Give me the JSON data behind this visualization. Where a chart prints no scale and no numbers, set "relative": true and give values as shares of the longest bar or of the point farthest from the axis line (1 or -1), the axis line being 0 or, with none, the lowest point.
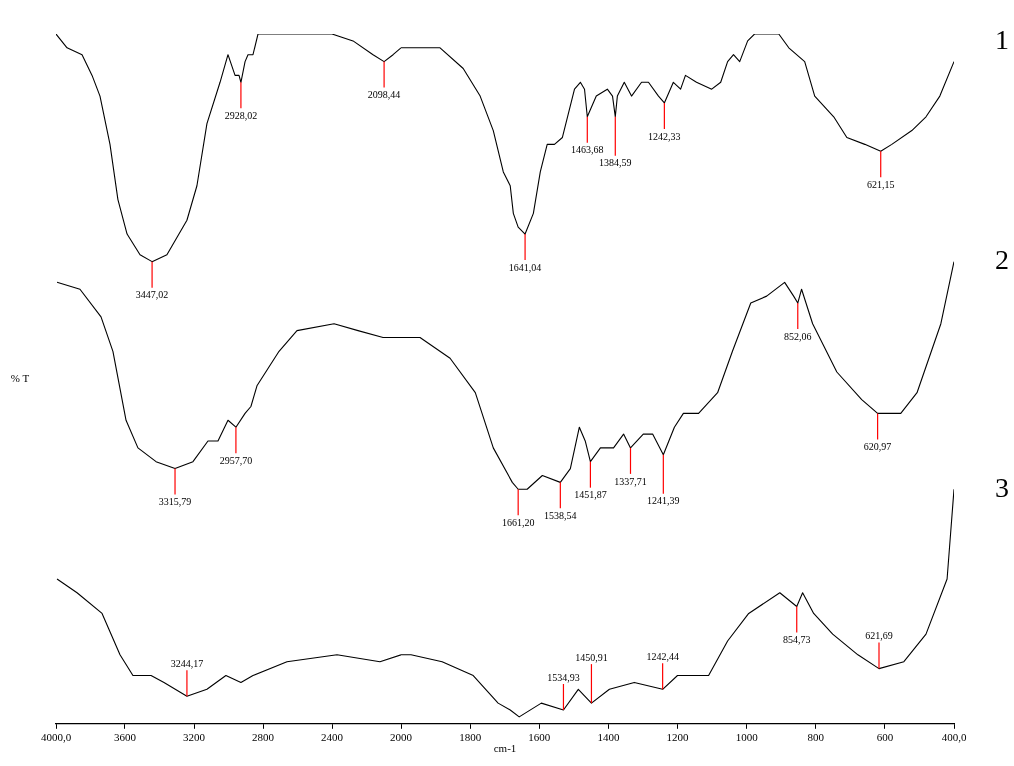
{
  "chart_data": [
    {
      "type": "line",
      "relative": true,
      "ylabel": "% T",
      "tick_labels": "x",
      "grid": false,
      "legend": false,
      "marker": "none",
      "line_style": "solid",
      "xlim": [
        4000,
        2000
      ],
      "xticks": [
        {
          "value": 4000,
          "label": "4000,0"
        },
        3600,
        3200,
        2800,
        2400,
        2000
      ],
      "series": [
        {
          "color": "#000000",
          "x": [
            4000,
            3936,
            3849,
            3791,
            3745,
            3687,
            3641,
            3588,
            3513,
            3443,
            3357,
            3241,
            3183,
            3125,
            3049,
            3003,
            2962,
            2939,
            2928,
            2904,
            2887,
            2858,
            2829,
            2742,
            2545,
            2400,
            2278,
            2162,
            2098,
            2046,
            2000
          ],
          "values": [
            1.0,
            0.98,
            0.97,
            0.94,
            0.91,
            0.84,
            0.76,
            0.71,
            0.68,
            0.67,
            0.68,
            0.73,
            0.78,
            0.87,
            0.93,
            0.97,
            0.94,
            0.94,
            0.93,
            0.96,
            0.97,
            0.97,
            1.0,
            1.0,
            1.0,
            1.0,
            0.99,
            0.97,
            0.96,
            0.97,
            0.98
          ]
        },
        {
          "color": "#000000",
          "x": [
            3994,
            3861,
            3739,
            3670,
            3594,
            3525,
            3420,
            3310,
            3206,
            3119,
            3061,
            3003,
            2957,
            2904,
            2870,
            2835,
            2707,
            2603,
            2388,
            2249,
            2104,
            2035,
            2000
          ],
          "values": [
            0.64,
            0.63,
            0.59,
            0.54,
            0.44,
            0.4,
            0.38,
            0.37,
            0.38,
            0.41,
            0.41,
            0.44,
            0.43,
            0.45,
            0.46,
            0.49,
            0.54,
            0.57,
            0.58,
            0.57,
            0.56,
            0.56,
            0.56
          ]
        },
        {
          "color": "#000000",
          "x": [
            3994,
            3878,
            3733,
            3629,
            3554,
            3449,
            3374,
            3241,
            3125,
            3015,
            2928,
            2858,
            2661,
            2371,
            2122,
            2000
          ],
          "values": [
            0.21,
            0.19,
            0.16,
            0.1,
            0.07,
            0.07,
            0.06,
            0.04,
            0.05,
            0.07,
            0.06,
            0.07,
            0.09,
            0.1,
            0.09,
            0.1
          ]
        }
      ],
      "annotations": [
        {
          "text": "3447,02",
          "x": 3443,
          "y": 0.67
        },
        {
          "text": "2928,02",
          "x": 2928,
          "y": 0.93
        },
        {
          "text": "2098,44",
          "x": 2098,
          "y": 0.96
        },
        {
          "text": "3315,79",
          "x": 3310,
          "y": 0.37
        },
        {
          "text": "2957,70",
          "x": 2957,
          "y": 0.43
        },
        {
          "text": "3244,17",
          "x": 3241,
          "y": 0.04
        }
      ]
    },
    {
      "type": "line",
      "relative": true,
      "xlabel": "cm-1",
      "tick_labels": "x",
      "grid": false,
      "legend": false,
      "marker": "none",
      "line_style": "solid",
      "xlim": [
        2000,
        400
      ],
      "xticks": [
        1800,
        1600,
        1400,
        1200,
        1000,
        800,
        600,
        {
          "value": 400,
          "label": "400,0"
        }
      ],
      "series": [
        {
          "name": "1",
          "color": "#000000",
          "x": [
            2000,
            1994,
            1936,
            1887,
            1820,
            1771,
            1733,
            1704,
            1684,
            1675,
            1661,
            1641,
            1617,
            1597,
            1577,
            1556,
            1533,
            1498,
            1481,
            1469,
            1461,
            1435,
            1403,
            1388,
            1380,
            1374,
            1354,
            1333,
            1304,
            1284,
            1255,
            1238,
            1212,
            1191,
            1177,
            1145,
            1101,
            1075,
            1055,
            1038,
            1020,
            997,
            977,
            907,
            878,
            832,
            803,
            748,
            710,
            658,
            612,
            580,
            522,
            481,
            441,
            400
          ],
          "values": [
            0.98,
            0.98,
            0.98,
            0.98,
            0.95,
            0.91,
            0.86,
            0.8,
            0.78,
            0.74,
            0.72,
            0.71,
            0.74,
            0.8,
            0.84,
            0.84,
            0.85,
            0.92,
            0.93,
            0.92,
            0.88,
            0.91,
            0.92,
            0.91,
            0.88,
            0.91,
            0.93,
            0.91,
            0.93,
            0.93,
            0.91,
            0.9,
            0.93,
            0.92,
            0.94,
            0.93,
            0.92,
            0.93,
            0.96,
            0.97,
            0.96,
            0.99,
            1.0,
            1.0,
            0.98,
            0.96,
            0.91,
            0.88,
            0.85,
            0.84,
            0.83,
            0.84,
            0.86,
            0.88,
            0.91,
            0.96
          ]
        },
        {
          "name": "2",
          "color": "#000000",
          "x": [
            2000,
            1945,
            1858,
            1785,
            1733,
            1678,
            1661,
            1635,
            1591,
            1539,
            1510,
            1484,
            1467,
            1452,
            1423,
            1385,
            1356,
            1336,
            1299,
            1272,
            1241,
            1209,
            1183,
            1139,
            1084,
            1041,
            988,
            942,
            890,
            864,
            852,
            841,
            809,
            739,
            667,
            621,
            554,
            507,
            438,
            400
          ],
          "values": [
            0.56,
            0.56,
            0.53,
            0.48,
            0.4,
            0.35,
            0.34,
            0.34,
            0.36,
            0.35,
            0.37,
            0.43,
            0.41,
            0.38,
            0.4,
            0.4,
            0.42,
            0.4,
            0.42,
            0.42,
            0.39,
            0.43,
            0.45,
            0.45,
            0.48,
            0.54,
            0.61,
            0.62,
            0.64,
            0.62,
            0.61,
            0.63,
            0.58,
            0.51,
            0.47,
            0.45,
            0.45,
            0.48,
            0.58,
            0.67
          ]
        },
        {
          "name": "3",
          "color": "#000000",
          "x": [
            2000,
            1971,
            1881,
            1791,
            1719,
            1684,
            1658,
            1594,
            1530,
            1487,
            1449,
            1397,
            1325,
            1243,
            1200,
            1110,
            1055,
            994,
            904,
            855,
            838,
            806,
            751,
            678,
            617,
            545,
            481,
            420,
            400
          ],
          "values": [
            0.1,
            0.1,
            0.09,
            0.07,
            0.03,
            0.02,
            0.01,
            0.03,
            0.02,
            0.05,
            0.03,
            0.05,
            0.06,
            0.05,
            0.07,
            0.07,
            0.12,
            0.16,
            0.19,
            0.17,
            0.19,
            0.16,
            0.13,
            0.1,
            0.08,
            0.09,
            0.13,
            0.21,
            0.34
          ]
        }
      ],
      "annotations": [
        {
          "text": "1641,04",
          "x": 1641,
          "y": 0.71
        },
        {
          "text": "1463,68",
          "x": 1461,
          "y": 0.88
        },
        {
          "text": "1384,59",
          "x": 1380,
          "y": 0.88
        },
        {
          "text": "1242,33",
          "x": 1238,
          "y": 0.9
        },
        {
          "text": "621,15",
          "x": 612,
          "y": 0.83
        },
        {
          "text": "1661,20",
          "x": 1661,
          "y": 0.34
        },
        {
          "text": "1538,54",
          "x": 1539,
          "y": 0.35
        },
        {
          "text": "1451,87",
          "x": 1452,
          "y": 0.38
        },
        {
          "text": "1337,71",
          "x": 1336,
          "y": 0.4
        },
        {
          "text": "1241,39",
          "x": 1241,
          "y": 0.39
        },
        {
          "text": "852,06",
          "x": 852,
          "y": 0.61
        },
        {
          "text": "620,97",
          "x": 621,
          "y": 0.45
        },
        {
          "text": "1534,93",
          "x": 1530,
          "y": 0.02
        },
        {
          "text": "1450,91",
          "x": 1449,
          "y": 0.03
        },
        {
          "text": "1242,44",
          "x": 1243,
          "y": 0.05
        },
        {
          "text": "854,73",
          "x": 855,
          "y": 0.17
        },
        {
          "text": "621,69",
          "x": 617,
          "y": 0.08
        }
      ]
    }
  ]
}
